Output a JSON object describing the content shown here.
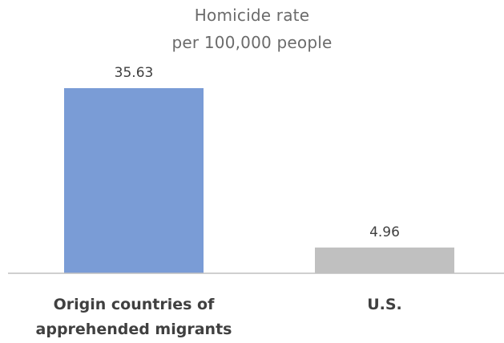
{
  "chart_data": {
    "type": "bar",
    "title_lines": [
      "Homicide rate",
      "per 100,000 people"
    ],
    "categories": [
      [
        "Origin countries of",
        "apprehended migrants"
      ],
      [
        "U.S."
      ]
    ],
    "values": [
      35.63,
      4.96
    ],
    "value_labels": [
      "35.63",
      "4.96"
    ],
    "colors": [
      "#7a9cd6",
      "#c0c0c0"
    ],
    "ylim": [
      0,
      40
    ]
  }
}
